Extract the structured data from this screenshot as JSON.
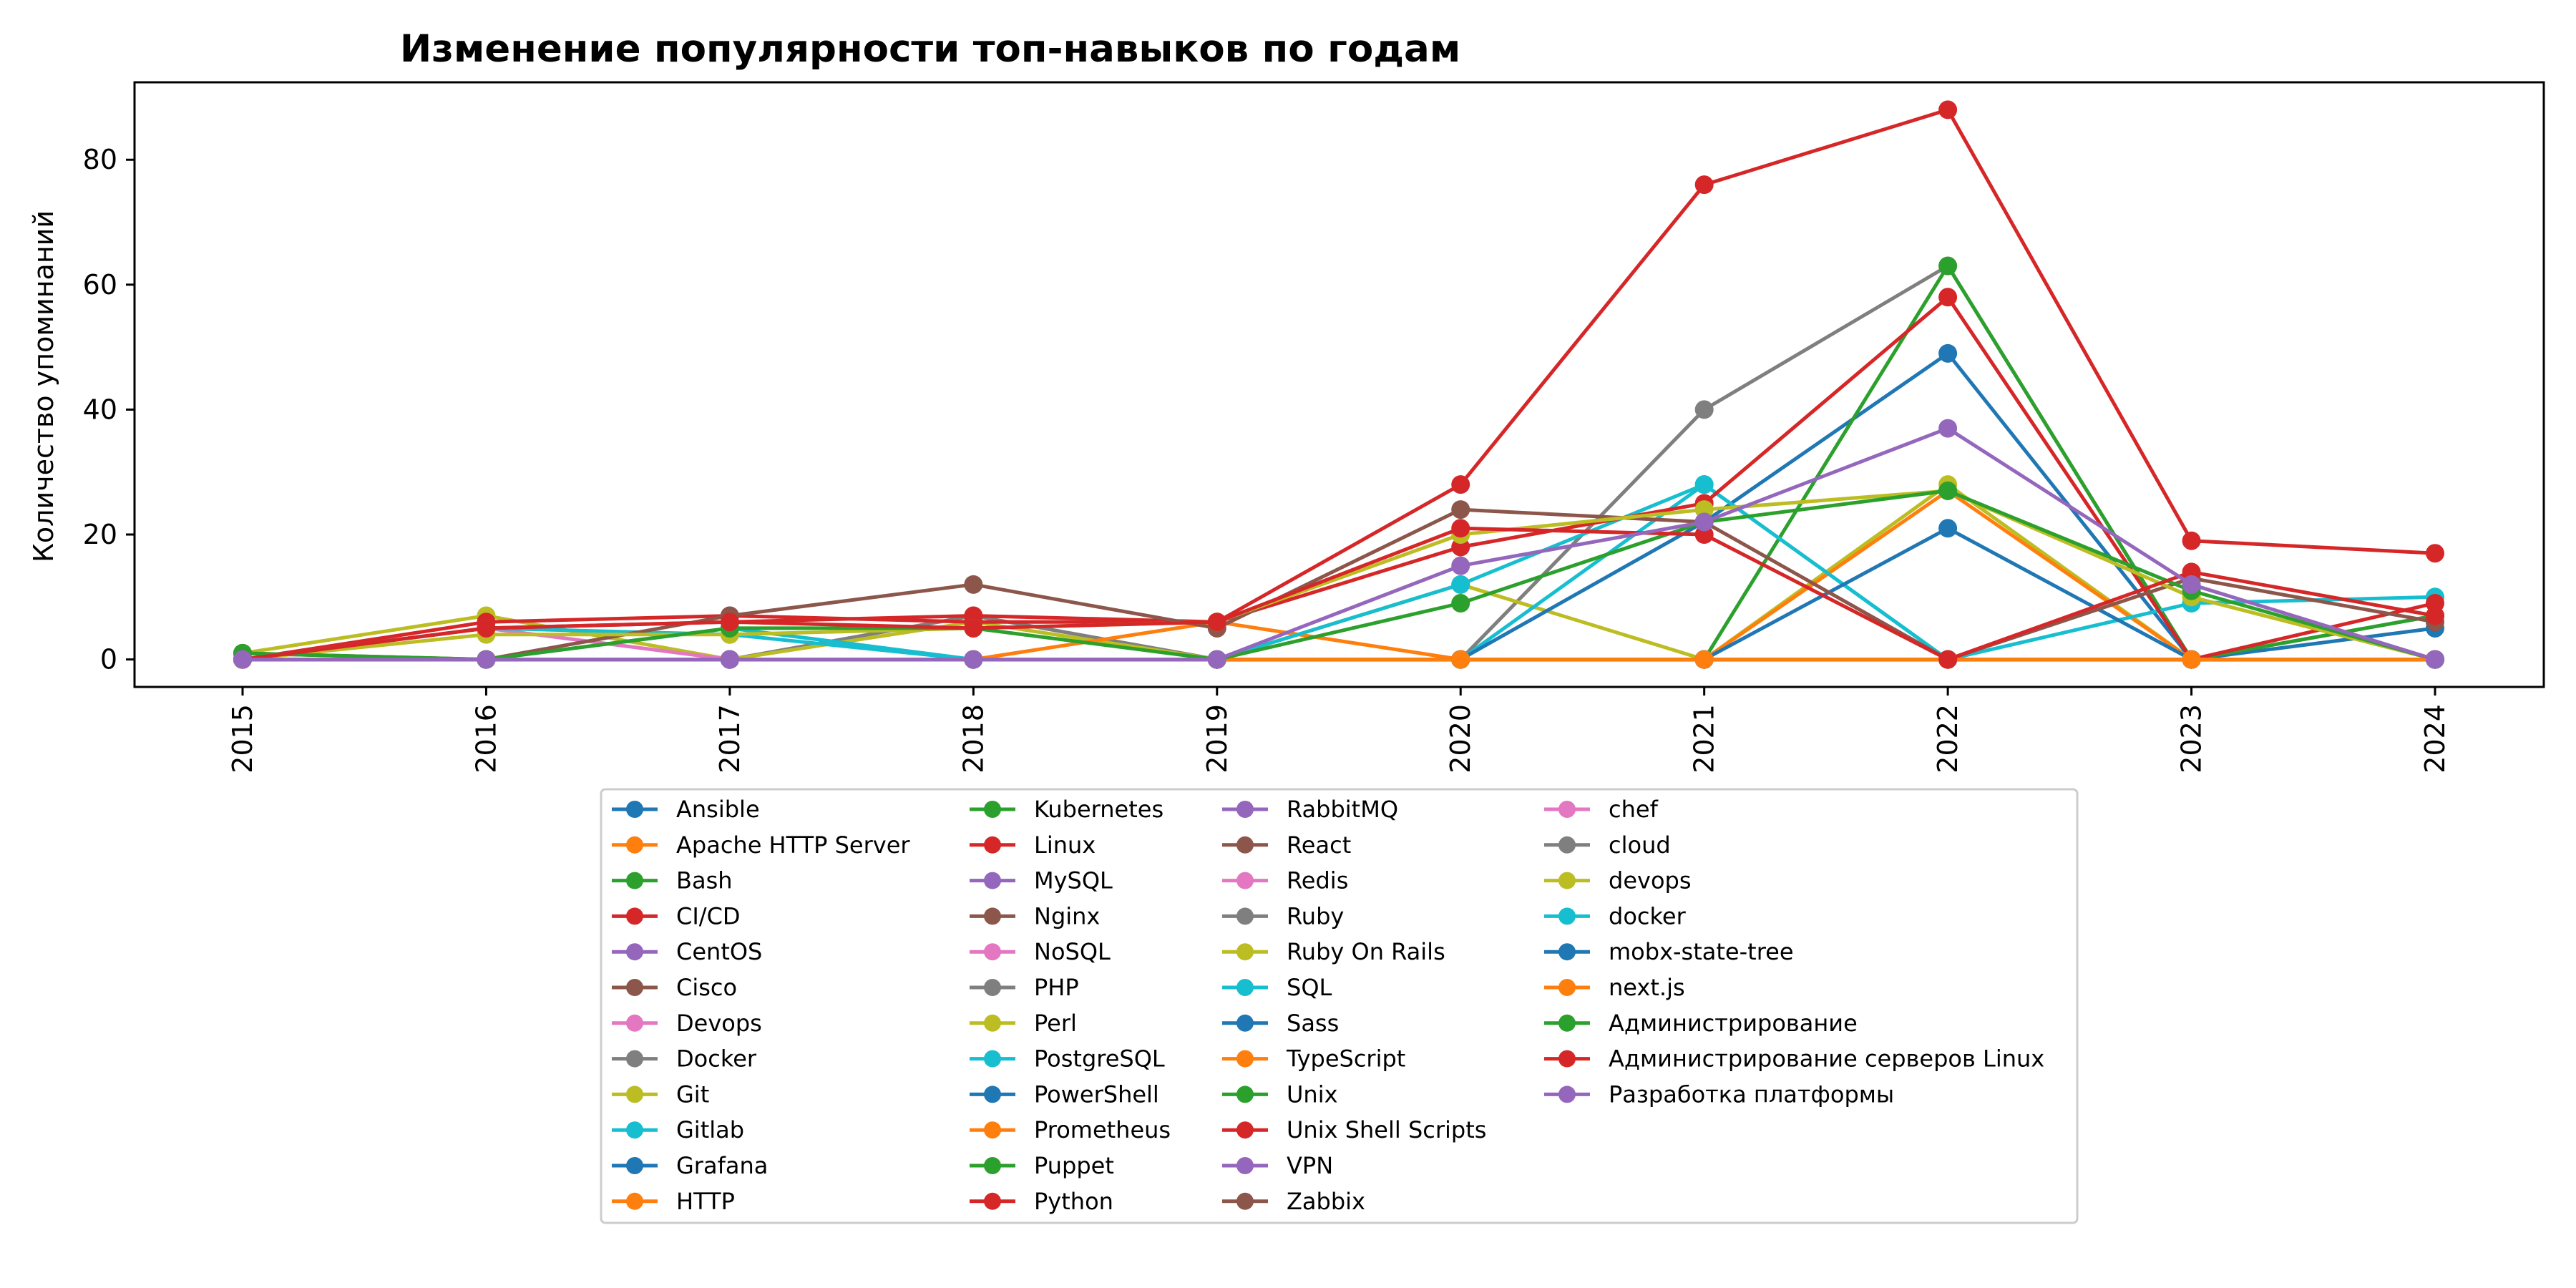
{
  "chart_data": {
    "type": "line",
    "title": "Изменение популярности топ-навыков по годам",
    "xlabel": "",
    "ylabel": "Количество упоминаний",
    "x": [
      "2015",
      "2016",
      "2017",
      "2018",
      "2019",
      "2020",
      "2021",
      "2022",
      "2023",
      "2024"
    ],
    "ylim": [
      -4.4,
      92.4
    ],
    "yticks": [
      0,
      20,
      40,
      60,
      80
    ],
    "grid": false,
    "legend_position": "bottom-center",
    "legend_columns": 4,
    "series": [
      {
        "name": "Ansible",
        "color": "#1f77b4",
        "values": [
          0,
          0,
          0,
          0,
          0,
          0,
          0,
          0,
          0,
          0
        ]
      },
      {
        "name": "Apache HTTP Server",
        "color": "#ff7f0e",
        "values": [
          0,
          0,
          0,
          0,
          0,
          0,
          0,
          0,
          0,
          0
        ]
      },
      {
        "name": "Bash",
        "color": "#2ca02c",
        "values": [
          0,
          0,
          0,
          0,
          0,
          0,
          0,
          0,
          0,
          0
        ]
      },
      {
        "name": "CI/CD",
        "color": "#d62728",
        "values": [
          0,
          0,
          0,
          0,
          0,
          0,
          0,
          0,
          0,
          0
        ]
      },
      {
        "name": "CentOS",
        "color": "#9467bd",
        "values": [
          0,
          0,
          0,
          0,
          0,
          0,
          0,
          0,
          0,
          0
        ]
      },
      {
        "name": "Cisco",
        "color": "#8c564b",
        "values": [
          0,
          0,
          0,
          0,
          0,
          0,
          0,
          0,
          0,
          0
        ]
      },
      {
        "name": "Devops",
        "color": "#e377c2",
        "values": [
          0,
          0,
          0,
          0,
          0,
          0,
          0,
          0,
          0,
          0
        ]
      },
      {
        "name": "Docker",
        "color": "#7f7f7f",
        "values": [
          0,
          0,
          0,
          7,
          0,
          0,
          40,
          63,
          0,
          7
        ]
      },
      {
        "name": "Git",
        "color": "#bcbd22",
        "values": [
          1,
          7,
          0,
          6,
          0,
          12,
          0,
          28,
          0,
          0
        ]
      },
      {
        "name": "Gitlab",
        "color": "#17becf",
        "values": [
          0,
          0,
          5,
          0,
          0,
          0,
          28,
          0,
          0,
          0
        ]
      },
      {
        "name": "Grafana",
        "color": "#1f77b4",
        "values": [
          0,
          0,
          0,
          0,
          0,
          0,
          22,
          49,
          0,
          5
        ]
      },
      {
        "name": "HTTP",
        "color": "#ff7f0e",
        "values": [
          0,
          0,
          0,
          0,
          6,
          0,
          0,
          27,
          0,
          0
        ]
      },
      {
        "name": "Kubernetes",
        "color": "#2ca02c",
        "values": [
          0,
          0,
          0,
          0,
          0,
          0,
          0,
          63,
          0,
          7
        ]
      },
      {
        "name": "Linux",
        "color": "#d62728",
        "values": [
          0,
          6,
          7,
          6,
          6,
          28,
          76,
          88,
          19,
          17
        ]
      },
      {
        "name": "MySQL",
        "color": "#9467bd",
        "values": [
          0,
          0,
          0,
          0,
          0,
          0,
          0,
          0,
          0,
          0
        ]
      },
      {
        "name": "Nginx",
        "color": "#8c564b",
        "values": [
          0,
          0,
          0,
          0,
          0,
          0,
          0,
          0,
          0,
          0
        ]
      },
      {
        "name": "NoSQL",
        "color": "#e377c2",
        "values": [
          0,
          5,
          0,
          0,
          0,
          0,
          0,
          0,
          0,
          0
        ]
      },
      {
        "name": "PHP",
        "color": "#7f7f7f",
        "values": [
          0,
          0,
          0,
          0,
          0,
          0,
          0,
          0,
          0,
          0
        ]
      },
      {
        "name": "Perl",
        "color": "#bcbd22",
        "values": [
          0,
          0,
          0,
          0,
          0,
          0,
          0,
          0,
          0,
          0
        ]
      },
      {
        "name": "PostgreSQL",
        "color": "#17becf",
        "values": [
          0,
          5,
          4,
          0,
          0,
          12,
          28,
          0,
          9,
          10
        ]
      },
      {
        "name": "PowerShell",
        "color": "#1f77b4",
        "values": [
          0,
          0,
          0,
          0,
          0,
          0,
          0,
          21,
          0,
          0
        ]
      },
      {
        "name": "Prometheus",
        "color": "#ff7f0e",
        "values": [
          0,
          0,
          0,
          0,
          0,
          0,
          0,
          0,
          0,
          0
        ]
      },
      {
        "name": "Puppet",
        "color": "#2ca02c",
        "values": [
          0,
          0,
          0,
          0,
          0,
          0,
          0,
          0,
          0,
          0
        ]
      },
      {
        "name": "Python",
        "color": "#d62728",
        "values": [
          0,
          5,
          6,
          7,
          6,
          18,
          25,
          58,
          0,
          9
        ]
      },
      {
        "name": "RabbitMQ",
        "color": "#9467bd",
        "values": [
          0,
          0,
          0,
          0,
          0,
          0,
          0,
          0,
          0,
          0
        ]
      },
      {
        "name": "React",
        "color": "#8c564b",
        "values": [
          0,
          0,
          0,
          0,
          0,
          0,
          0,
          0,
          0,
          0
        ]
      },
      {
        "name": "Redis",
        "color": "#e377c2",
        "values": [
          0,
          0,
          0,
          0,
          0,
          0,
          0,
          0,
          0,
          0
        ]
      },
      {
        "name": "Ruby",
        "color": "#7f7f7f",
        "values": [
          0,
          0,
          0,
          0,
          0,
          0,
          0,
          0,
          0,
          0
        ]
      },
      {
        "name": "Ruby On Rails",
        "color": "#bcbd22",
        "values": [
          0,
          0,
          0,
          0,
          0,
          0,
          0,
          0,
          0,
          0
        ]
      },
      {
        "name": "SQL",
        "color": "#17becf",
        "values": [
          0,
          0,
          0,
          0,
          0,
          0,
          0,
          0,
          0,
          0
        ]
      },
      {
        "name": "Sass",
        "color": "#1f77b4",
        "values": [
          0,
          0,
          0,
          0,
          0,
          0,
          0,
          0,
          0,
          0
        ]
      },
      {
        "name": "TypeScript",
        "color": "#ff7f0e",
        "values": [
          0,
          0,
          0,
          0,
          0,
          0,
          0,
          0,
          0,
          0
        ]
      },
      {
        "name": "Unix",
        "color": "#2ca02c",
        "values": [
          0,
          0,
          0,
          0,
          0,
          0,
          0,
          0,
          0,
          0
        ]
      },
      {
        "name": "Unix Shell Scripts",
        "color": "#d62728",
        "values": [
          0,
          0,
          0,
          0,
          0,
          0,
          0,
          0,
          0,
          0
        ]
      },
      {
        "name": "VPN",
        "color": "#9467bd",
        "values": [
          0,
          0,
          0,
          0,
          0,
          0,
          0,
          0,
          0,
          0
        ]
      },
      {
        "name": "Zabbix",
        "color": "#8c564b",
        "values": [
          1,
          0,
          7,
          12,
          5,
          24,
          22,
          0,
          13,
          6
        ]
      },
      {
        "name": "chef",
        "color": "#e377c2",
        "values": [
          0,
          0,
          0,
          0,
          0,
          0,
          0,
          0,
          0,
          0
        ]
      },
      {
        "name": "cloud",
        "color": "#7f7f7f",
        "values": [
          0,
          0,
          0,
          0,
          0,
          0,
          0,
          0,
          0,
          0
        ]
      },
      {
        "name": "devops",
        "color": "#bcbd22",
        "values": [
          0,
          4,
          4,
          5,
          6,
          20,
          24,
          27,
          10,
          0
        ]
      },
      {
        "name": "docker",
        "color": "#17becf",
        "values": [
          0,
          0,
          0,
          0,
          0,
          0,
          0,
          0,
          0,
          0
        ]
      },
      {
        "name": "mobx-state-tree",
        "color": "#1f77b4",
        "values": [
          0,
          0,
          0,
          0,
          0,
          0,
          0,
          0,
          0,
          0
        ]
      },
      {
        "name": "next.js",
        "color": "#ff7f0e",
        "values": [
          0,
          0,
          0,
          0,
          0,
          0,
          0,
          0,
          0,
          0
        ]
      },
      {
        "name": "Администрирование",
        "color": "#2ca02c",
        "values": [
          1,
          0,
          5,
          5,
          0,
          9,
          22,
          27,
          11,
          0
        ]
      },
      {
        "name": "Администрирование серверов Linux",
        "color": "#d62728",
        "values": [
          0,
          5,
          6,
          5,
          6,
          21,
          20,
          0,
          14,
          7
        ]
      },
      {
        "name": "Разработка платформы",
        "color": "#9467bd",
        "values": [
          0,
          0,
          0,
          0,
          0,
          15,
          22,
          37,
          12,
          0
        ]
      }
    ]
  }
}
